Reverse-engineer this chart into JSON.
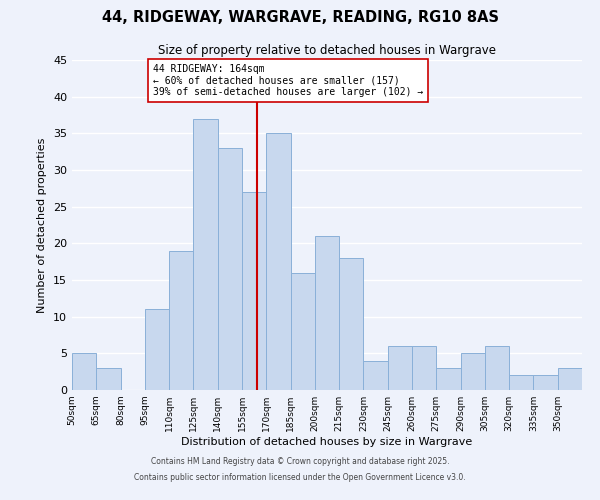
{
  "title_line1": "44, RIDGEWAY, WARGRAVE, READING, RG10 8AS",
  "title_line2": "Size of property relative to detached houses in Wargrave",
  "xlabel": "Distribution of detached houses by size in Wargrave",
  "ylabel": "Number of detached properties",
  "bar_color": "#c8d8ee",
  "bar_edge_color": "#8ab0d8",
  "background_color": "#eef2fb",
  "grid_color": "#ffffff",
  "bins": [
    50,
    65,
    80,
    95,
    110,
    125,
    140,
    155,
    170,
    185,
    200,
    215,
    230,
    245,
    260,
    275,
    290,
    305,
    320,
    335,
    350
  ],
  "counts": [
    5,
    3,
    0,
    11,
    19,
    37,
    33,
    27,
    35,
    16,
    21,
    18,
    4,
    6,
    6,
    3,
    5,
    6,
    2,
    2,
    3
  ],
  "marker_value": 164,
  "marker_color": "#cc0000",
  "annotation_title": "44 RIDGEWAY: 164sqm",
  "annotation_line1": "← 60% of detached houses are smaller (157)",
  "annotation_line2": "39% of semi-detached houses are larger (102) →",
  "annotation_box_color": "#ffffff",
  "annotation_box_edge": "#cc0000",
  "ylim": [
    0,
    45
  ],
  "yticks": [
    0,
    5,
    10,
    15,
    20,
    25,
    30,
    35,
    40,
    45
  ],
  "footnote_line1": "Contains HM Land Registry data © Crown copyright and database right 2025.",
  "footnote_line2": "Contains public sector information licensed under the Open Government Licence v3.0."
}
